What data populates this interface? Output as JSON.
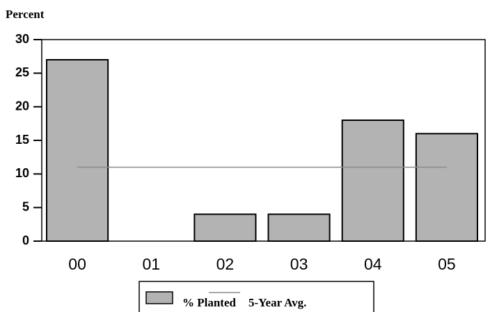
{
  "chart_data": {
    "type": "bar",
    "y_label": "Percent",
    "categories": [
      "00",
      "01",
      "02",
      "03",
      "04",
      "05"
    ],
    "series": [
      {
        "name": "% Planted",
        "type": "bar",
        "color": "#b3b3b3",
        "values": [
          27,
          0,
          4,
          4,
          18,
          16
        ]
      },
      {
        "name": "5-Year Avg.",
        "type": "line",
        "color": "#8c8c8c",
        "values": [
          11,
          11,
          11,
          11,
          11,
          11
        ]
      }
    ],
    "ylim": [
      0,
      30
    ],
    "yticks": [
      0,
      5,
      10,
      15,
      20,
      25,
      30
    ],
    "grid": false,
    "legend": "bottom"
  }
}
